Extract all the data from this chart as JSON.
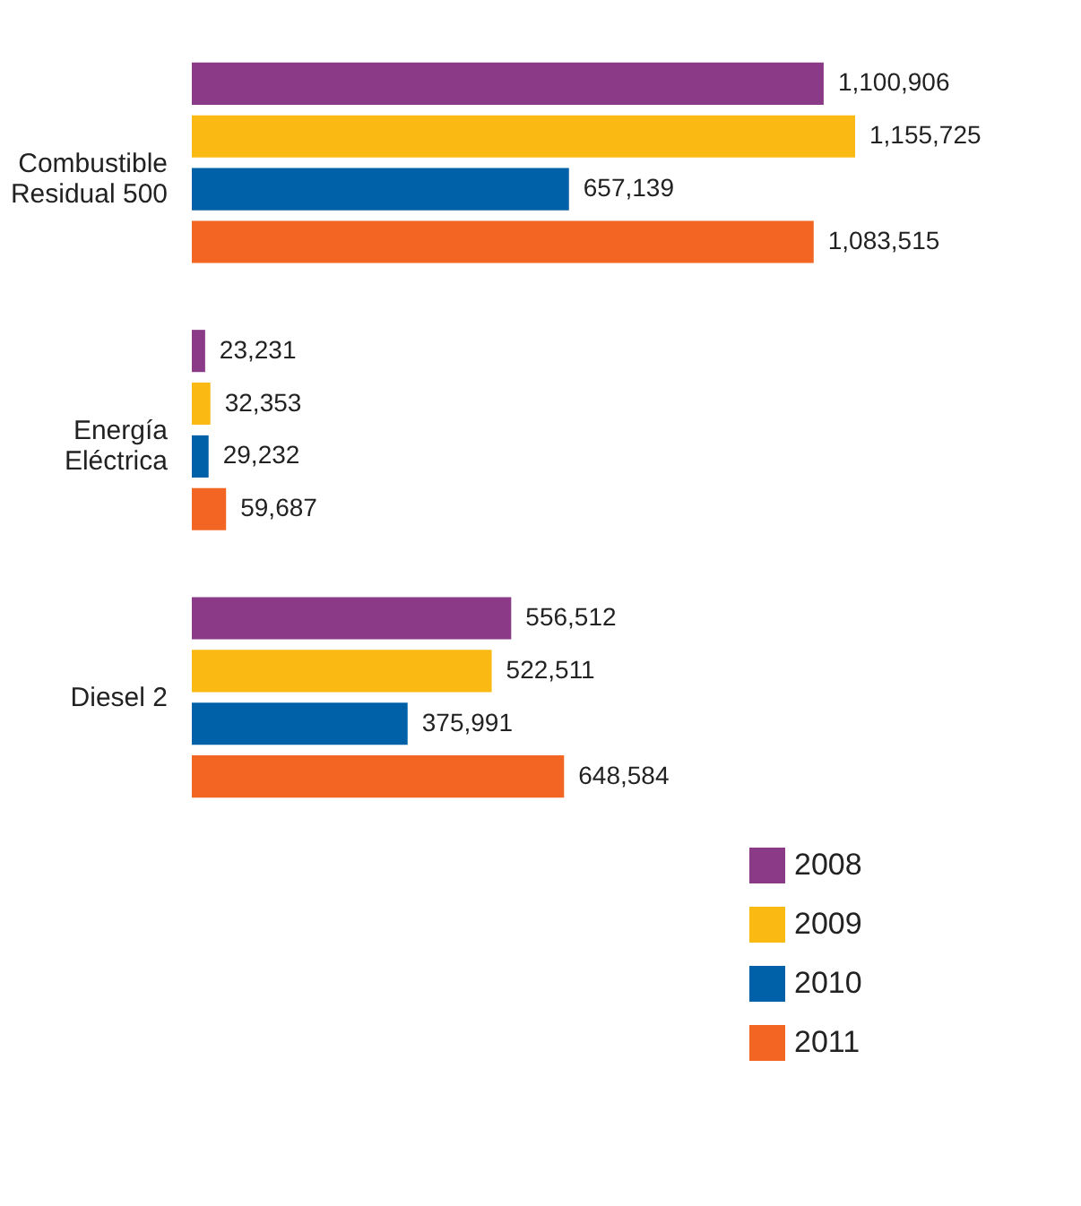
{
  "chart_data": {
    "type": "bar",
    "orientation": "horizontal",
    "categories": [
      "Combustible Residual 500",
      "Energía Eléctrica",
      "Diesel 2"
    ],
    "series": [
      {
        "name": "2008",
        "color": "#8b3a87",
        "values": [
          1100906,
          23231,
          556512
        ],
        "value_labels": [
          "1,100,906",
          "23,231",
          "556,512"
        ]
      },
      {
        "name": "2009",
        "color": "#fbb913",
        "values": [
          1155725,
          32353,
          522511
        ],
        "value_labels": [
          "1,155,725",
          "32,353",
          "522,511"
        ]
      },
      {
        "name": "2010",
        "color": "#0060a8",
        "values": [
          657139,
          29232,
          375991
        ],
        "value_labels": [
          "657,139",
          "29,232",
          "375,991"
        ]
      },
      {
        "name": "2011",
        "color": "#f26522",
        "values": [
          1083515,
          59687,
          648584
        ],
        "value_labels": [
          "1,083,515",
          "59,687",
          "648,584"
        ]
      }
    ],
    "legend": "bottom right"
  }
}
